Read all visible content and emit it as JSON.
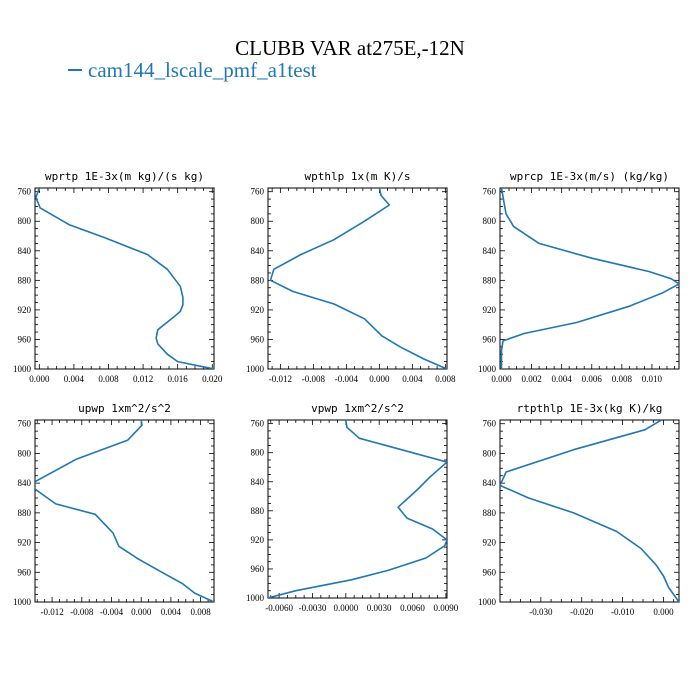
{
  "title": "CLUBB VAR at275E,-12N",
  "legend": {
    "label": "cam144_lscale_pmf_a1test",
    "color": "#1f77b4"
  },
  "chart_data": [
    {
      "type": "line",
      "title": "wprtp  1E-3x(m kg)/(s kg)",
      "xlim": [
        -0.0005,
        0.0202
      ],
      "ylim": [
        755,
        1000
      ],
      "xticks": [
        0.0,
        0.004,
        0.008,
        0.012,
        0.016,
        0.02
      ],
      "xtick_labels": [
        "0.000",
        "0.004",
        "0.008",
        "0.012",
        "0.016",
        "0.020"
      ],
      "yticks": [
        760,
        800,
        840,
        880,
        920,
        960,
        1000
      ],
      "series": [
        {
          "x": [
            0.0,
            -0.0004,
            0.0001,
            0.0035,
            0.0075,
            0.0125,
            0.0148,
            0.0163,
            0.0166,
            0.0166,
            0.0163,
            0.0155,
            0.0137,
            0.0135,
            0.0137,
            0.0148,
            0.016,
            0.0202
          ],
          "y": [
            755,
            768,
            782,
            805,
            822,
            845,
            865,
            888,
            903,
            913,
            922,
            930,
            947,
            958,
            966,
            980,
            990,
            1000
          ]
        }
      ]
    },
    {
      "type": "line",
      "title": "wpthlp  1x(m K)/s",
      "xlim": [
        -0.0135,
        0.0082
      ],
      "ylim": [
        755,
        1000
      ],
      "xticks": [
        -0.012,
        -0.008,
        -0.004,
        0.0,
        0.004,
        0.008
      ],
      "xtick_labels": [
        "-0.012",
        "-0.008",
        "-0.004",
        "0.000",
        "0.004",
        "0.008"
      ],
      "yticks": [
        760,
        800,
        840,
        880,
        920,
        960,
        1000
      ],
      "series": [
        {
          "x": [
            0.0,
            0.0002,
            0.0012,
            -0.0018,
            -0.0055,
            -0.0095,
            -0.0128,
            -0.0132,
            -0.0105,
            -0.0055,
            -0.0018,
            0.0003,
            0.0025,
            0.0055,
            0.0082
          ],
          "y": [
            755,
            765,
            778,
            800,
            825,
            845,
            865,
            880,
            895,
            912,
            932,
            955,
            970,
            987,
            1000
          ]
        }
      ]
    },
    {
      "type": "line",
      "title": "wprcp  1E-3x(m/s) (kg/kg)",
      "xlim": [
        -0.0001,
        0.0118
      ],
      "ylim": [
        755,
        1000
      ],
      "xticks": [
        0.0,
        0.002,
        0.004,
        0.006,
        0.008,
        0.01
      ],
      "xtick_labels": [
        "0.000",
        "0.002",
        "0.004",
        "0.006",
        "0.008",
        "0.010"
      ],
      "yticks": [
        760,
        800,
        840,
        880,
        920,
        960,
        1000
      ],
      "series": [
        {
          "x": [
            0.0,
            0.0003,
            0.0006,
            0.0008,
            0.0025,
            0.006,
            0.0098,
            0.0113,
            0.0118,
            0.0107,
            0.0085,
            0.005,
            0.0015,
            0.0001,
            0.0,
            0.0
          ],
          "y": [
            755,
            790,
            800,
            807,
            830,
            850,
            868,
            878,
            885,
            897,
            915,
            937,
            952,
            962,
            975,
            1000
          ]
        }
      ]
    },
    {
      "type": "line",
      "title": "upwp  1xm^2/s^2",
      "xlim": [
        -0.0143,
        0.0098
      ],
      "ylim": [
        755,
        1000
      ],
      "xticks": [
        -0.012,
        -0.008,
        -0.004,
        0.0,
        0.004,
        0.008
      ],
      "xtick_labels": [
        "-0.012",
        "-0.008",
        "-0.004",
        "0.000",
        "0.004",
        "0.008"
      ],
      "yticks": [
        760,
        800,
        840,
        880,
        920,
        960,
        1000
      ],
      "series": [
        {
          "x": [
            0.0,
            0.0001,
            -0.0018,
            -0.0088,
            -0.0143,
            -0.0143,
            -0.0115,
            -0.0062,
            -0.0038,
            -0.003,
            -0.0004,
            0.0028,
            0.0055,
            0.0072,
            0.0098
          ],
          "y": [
            755,
            762,
            782,
            808,
            838,
            848,
            868,
            882,
            907,
            925,
            942,
            960,
            975,
            988,
            1000
          ]
        }
      ]
    },
    {
      "type": "line",
      "title": "vpwp  1xm^2/s^2",
      "xlim": [
        -0.007,
        0.0091
      ],
      "ylim": [
        755,
        1000
      ],
      "xticks": [
        -0.006,
        -0.003,
        0.0,
        0.003,
        0.006,
        0.009
      ],
      "xtick_labels": [
        "-0.0060",
        "-0.0030",
        "0.0000",
        "0.0030",
        "0.0060",
        "0.0090"
      ],
      "yticks": [
        760,
        800,
        840,
        880,
        920,
        960,
        1000
      ],
      "series": [
        {
          "x": [
            0.0,
            0.0001,
            0.0012,
            0.0091,
            0.0076,
            0.0065,
            0.0047,
            0.0055,
            0.0078,
            0.0091,
            0.0089,
            0.0072,
            0.0038,
            0.0005,
            -0.0045,
            -0.007
          ],
          "y": [
            755,
            765,
            780,
            813,
            833,
            850,
            875,
            890,
            905,
            920,
            928,
            945,
            962,
            975,
            990,
            1000
          ]
        }
      ]
    },
    {
      "type": "line",
      "title": "rtpthlp  1E-3x(kg K)/kg",
      "xlim": [
        -0.04,
        0.0038
      ],
      "ylim": [
        755,
        1000
      ],
      "xticks": [
        -0.03,
        -0.02,
        -0.01,
        0.0
      ],
      "xtick_labels": [
        "-0.030",
        "-0.020",
        "-0.010",
        "0.000"
      ],
      "yticks": [
        760,
        800,
        840,
        880,
        920,
        960,
        1000
      ],
      "series": [
        {
          "x": [
            -0.0005,
            -0.0045,
            -0.022,
            -0.0385,
            -0.04,
            -0.033,
            -0.022,
            -0.0115,
            -0.0055,
            -0.0018,
            0.0,
            0.0012,
            0.0038
          ],
          "y": [
            755,
            768,
            795,
            825,
            843,
            860,
            880,
            905,
            928,
            950,
            965,
            980,
            1000
          ]
        }
      ]
    }
  ]
}
